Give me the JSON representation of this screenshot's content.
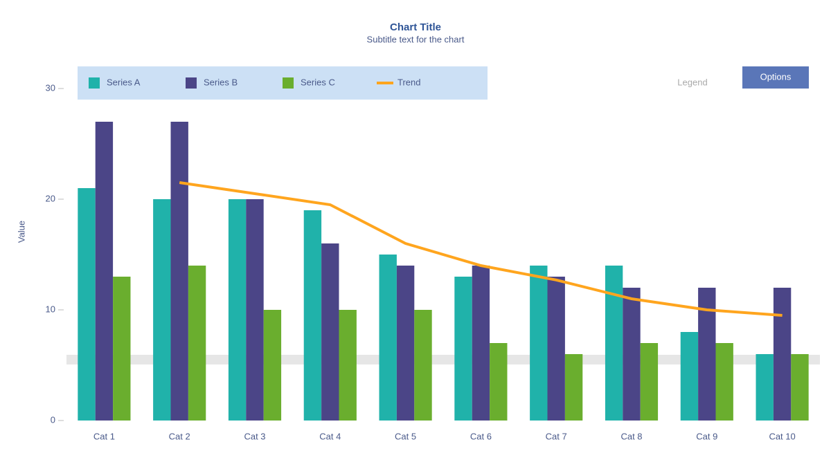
{
  "chart_data": {
    "type": "bar",
    "title": "Chart Title",
    "subtitle": "Subtitle text for the chart",
    "y_label": "Value",
    "legend_note": "Legend",
    "button_label": "Options",
    "categories": [
      "Cat 1",
      "Cat 2",
      "Cat 3",
      "Cat 4",
      "Cat 5",
      "Cat 6",
      "Cat 7",
      "Cat 8",
      "Cat 9",
      "Cat 10"
    ],
    "series": [
      {
        "name": "Series A",
        "color": "#20b2aa",
        "values": [
          21,
          20,
          20,
          19,
          15,
          13,
          14,
          14,
          8,
          6
        ]
      },
      {
        "name": "Series B",
        "color": "#4b4587",
        "values": [
          27,
          27,
          20,
          16,
          14,
          14,
          13,
          12,
          12,
          12
        ]
      },
      {
        "name": "Series C",
        "color": "#6aae2e",
        "values": [
          13,
          14,
          10,
          10,
          10,
          7,
          6,
          7,
          7,
          6
        ]
      },
      {
        "name": "Trend",
        "color": "#ffa51e",
        "type": "line",
        "values": [
          null,
          21.5,
          20.5,
          19.5,
          16,
          14,
          12.7,
          11,
          10,
          9.5
        ]
      }
    ],
    "reference_line": 5.5,
    "ylim": [
      0,
      32
    ],
    "yticks": [
      0,
      10,
      20,
      30
    ],
    "grid": false
  }
}
